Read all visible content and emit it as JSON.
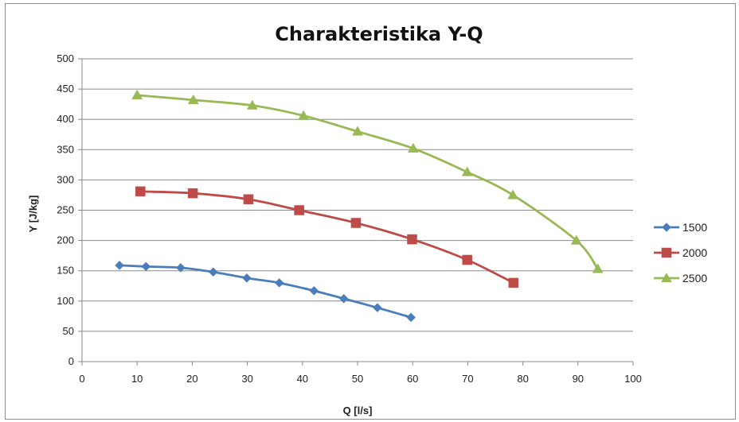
{
  "chart_data": {
    "type": "line",
    "title": "Charakteristika Y-Q",
    "xlabel": "Q [l/s]",
    "ylabel": "Y [J/kg]",
    "xlim": [
      0,
      100
    ],
    "ylim": [
      0,
      500
    ],
    "xticks": [
      "0",
      "10",
      "20",
      "30",
      "40",
      "50",
      "60",
      "70",
      "80",
      "90",
      "100"
    ],
    "yticks": [
      "0",
      "50",
      "100",
      "150",
      "200",
      "250",
      "300",
      "350",
      "400",
      "450",
      "500"
    ],
    "grid": "horizontal",
    "legend_position": "right",
    "series": [
      {
        "name": "1500",
        "color": "#4a7ebb",
        "marker": "diamond",
        "points": [
          [
            6.8,
            159
          ],
          [
            11.6,
            157
          ],
          [
            17.9,
            155
          ],
          [
            23.8,
            148
          ],
          [
            29.9,
            138
          ],
          [
            35.8,
            130
          ],
          [
            42.1,
            117
          ],
          [
            47.5,
            104
          ],
          [
            53.6,
            89
          ],
          [
            59.7,
            73
          ]
        ]
      },
      {
        "name": "2000",
        "color": "#be4b48",
        "marker": "square",
        "points": [
          [
            10.6,
            281
          ],
          [
            20.1,
            278
          ],
          [
            30.2,
            268
          ],
          [
            39.4,
            250
          ],
          [
            49.7,
            229
          ],
          [
            59.9,
            202
          ],
          [
            69.9,
            168
          ],
          [
            78.3,
            130
          ]
        ]
      },
      {
        "name": "2500",
        "color": "#98b954",
        "marker": "triangle",
        "points": [
          [
            10.0,
            440
          ],
          [
            20.2,
            432
          ],
          [
            30.9,
            423
          ],
          [
            40.2,
            406
          ],
          [
            50.0,
            380
          ],
          [
            60.1,
            352
          ],
          [
            69.9,
            313
          ],
          [
            78.2,
            275
          ],
          [
            89.7,
            200
          ],
          [
            93.6,
            153
          ]
        ]
      }
    ]
  }
}
